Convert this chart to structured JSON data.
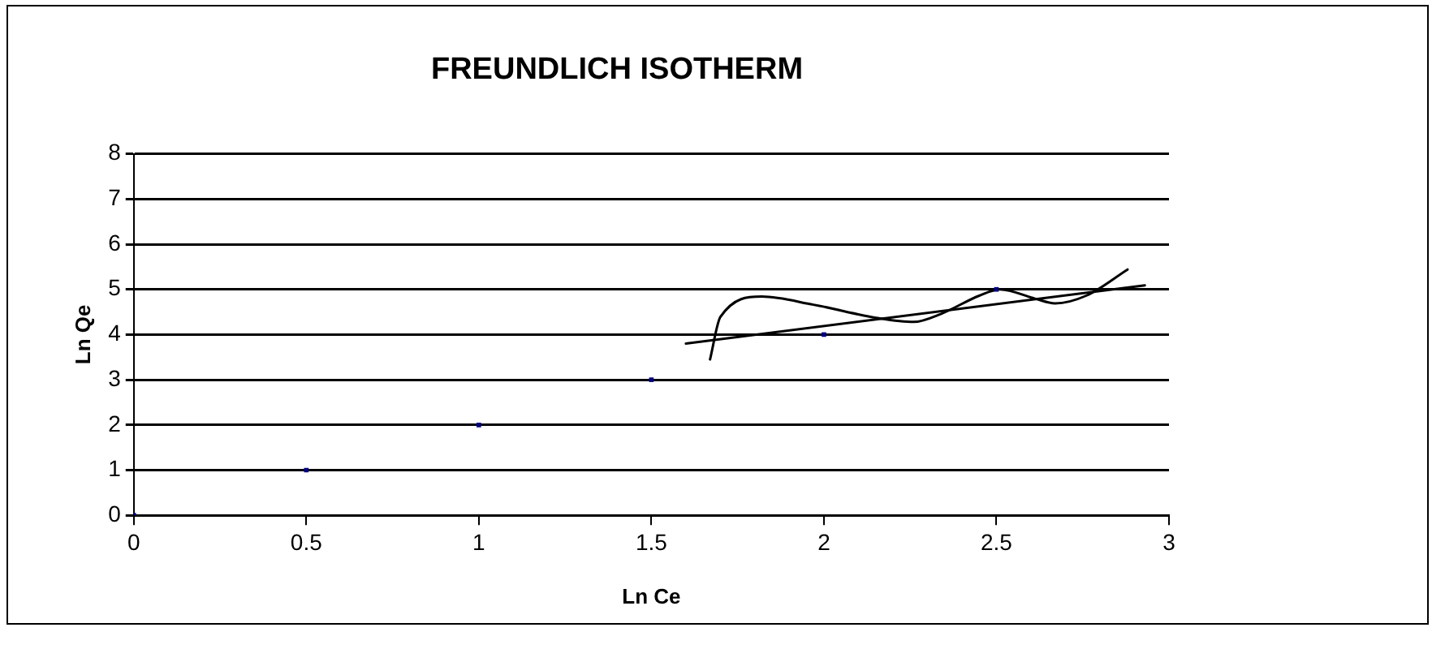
{
  "chart_data": {
    "type": "scatter",
    "title": "FREUNDLICH ISOTHERM",
    "xlabel": "Ln Ce",
    "ylabel": "Ln Qe",
    "xlim": [
      0,
      3
    ],
    "xticks": [
      0,
      0.5,
      1,
      1.5,
      2,
      2.5,
      3
    ],
    "ylim": [
      0,
      8
    ],
    "yticks": [
      0,
      1,
      2,
      3,
      4,
      5,
      6,
      7,
      8
    ],
    "grid": "y",
    "legend": false,
    "marker": "square",
    "series": [
      {
        "type": "scatter",
        "color": "#000080",
        "x": [
          0,
          0.5,
          1,
          1.5,
          2,
          2.5
        ],
        "values": [
          0,
          1,
          2,
          3,
          4,
          5
        ]
      },
      {
        "type": "line",
        "color": "#000000",
        "marker": "none",
        "x": [
          1.6,
          2.93
        ],
        "values": [
          3.8,
          5.09
        ]
      },
      {
        "type": "line",
        "color": "#000000",
        "marker": "none",
        "x": [
          1.67,
          1.7,
          1.82,
          1.97,
          2.16,
          2.26,
          2.34,
          2.45,
          2.51,
          2.61,
          2.67,
          2.76,
          2.88
        ],
        "values": [
          3.45,
          4.39,
          4.84,
          4.66,
          4.36,
          4.28,
          4.46,
          4.86,
          5.0,
          4.8,
          4.69,
          4.86,
          5.44
        ]
      }
    ]
  }
}
